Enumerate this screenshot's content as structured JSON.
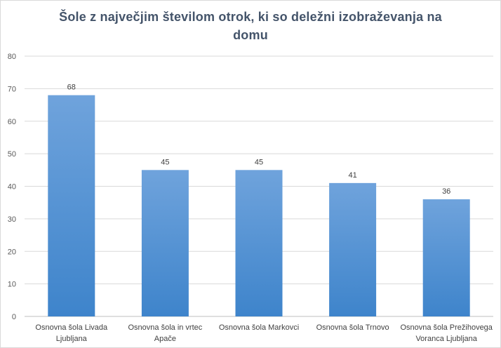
{
  "chart_data": {
    "type": "bar",
    "title": "Šole z največjim številom otrok, ki so deležni izobraževanja na domu",
    "categories": [
      [
        "Osnovna šola Livada",
        "Ljubljana"
      ],
      [
        "Osnovna šola in vrtec",
        "Apače"
      ],
      [
        "Osnovna šola Markovci"
      ],
      [
        "Osnovna šola Trnovo"
      ],
      [
        "Osnovna šola Prežihovega",
        "Voranca Ljubljana"
      ]
    ],
    "values": [
      68,
      45,
      45,
      41,
      36
    ],
    "data_labels": [
      "68",
      "45",
      "45",
      "41",
      "36"
    ],
    "ylim": [
      0,
      80
    ],
    "yticks": [
      0,
      10,
      20,
      30,
      40,
      50,
      60,
      70,
      80
    ],
    "xlabel": "",
    "ylabel": "",
    "grid": true,
    "legend": "none",
    "colors": {
      "bar_top": "#6fa3dc",
      "bar_bottom": "#3e84cb",
      "grid": "#d9d9d9",
      "axis": "#bfbfbf",
      "title": "#44546a"
    }
  }
}
